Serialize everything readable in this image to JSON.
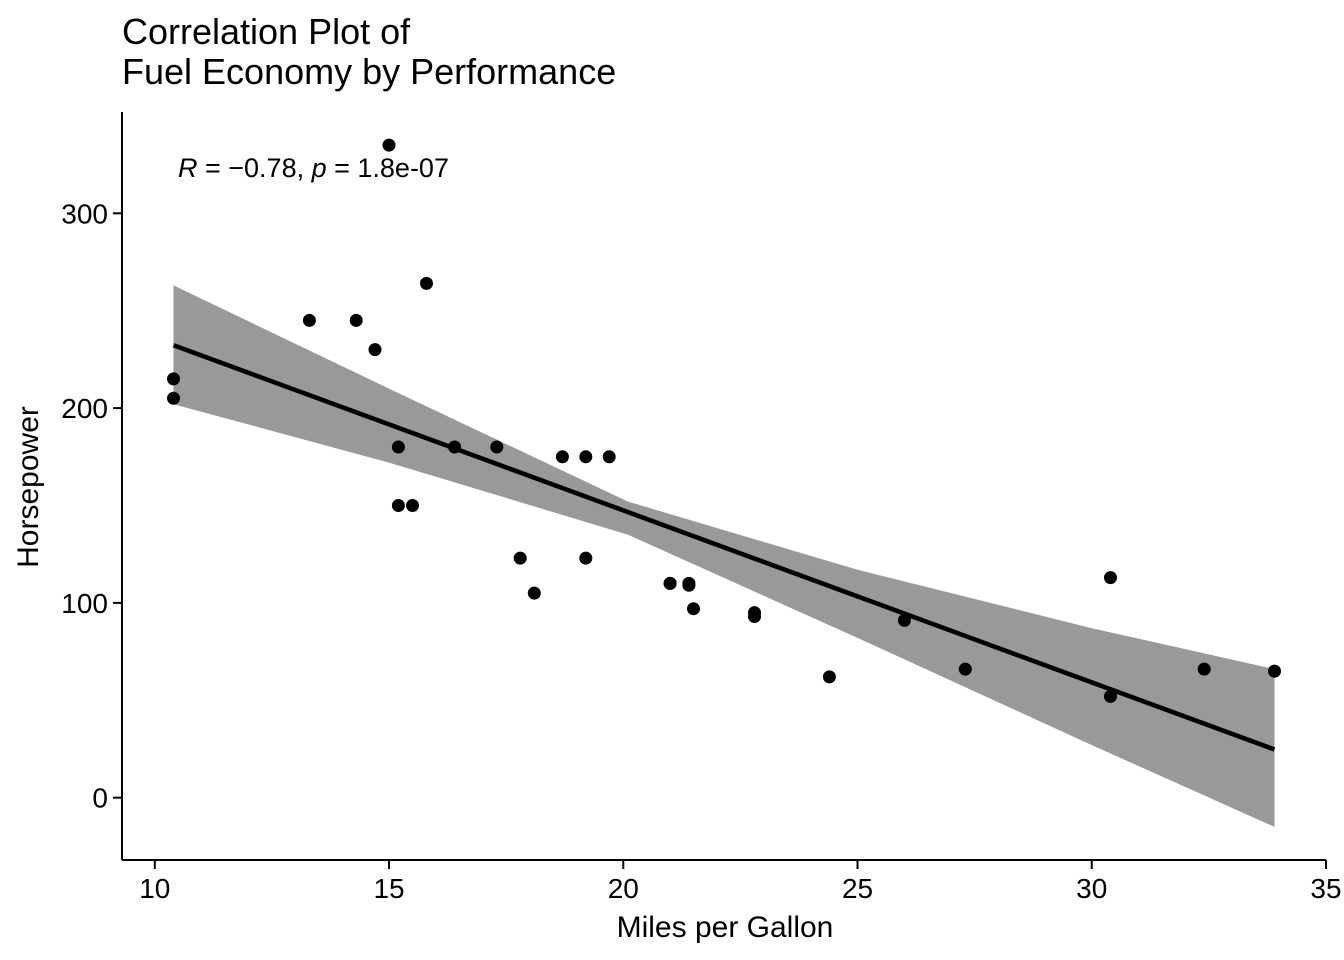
{
  "chart_data": {
    "type": "scatter",
    "title_lines": [
      "Correlation Plot of",
      "Fuel Economy by Performance"
    ],
    "xlabel": "Miles per Gallon",
    "ylabel": "Horsepower",
    "xlim": [
      9.3,
      35
    ],
    "ylim": [
      -32,
      352
    ],
    "xticks": [
      10,
      15,
      20,
      25,
      30,
      35
    ],
    "yticks": [
      0,
      100,
      200,
      300
    ],
    "grid": false,
    "annotation": {
      "r_symbol": "R",
      "r_text": " = −0.78, ",
      "p_symbol": "p",
      "p_text": " = 1.8e-07"
    },
    "points": [
      {
        "x": 21.0,
        "y": 110
      },
      {
        "x": 21.0,
        "y": 110
      },
      {
        "x": 22.8,
        "y": 93
      },
      {
        "x": 21.4,
        "y": 110
      },
      {
        "x": 18.7,
        "y": 175
      },
      {
        "x": 18.1,
        "y": 105
      },
      {
        "x": 14.3,
        "y": 245
      },
      {
        "x": 24.4,
        "y": 62
      },
      {
        "x": 22.8,
        "y": 95
      },
      {
        "x": 19.2,
        "y": 123
      },
      {
        "x": 17.8,
        "y": 123
      },
      {
        "x": 16.4,
        "y": 180
      },
      {
        "x": 17.3,
        "y": 180
      },
      {
        "x": 15.2,
        "y": 180
      },
      {
        "x": 10.4,
        "y": 205
      },
      {
        "x": 10.4,
        "y": 215
      },
      {
        "x": 14.7,
        "y": 230
      },
      {
        "x": 32.4,
        "y": 66
      },
      {
        "x": 30.4,
        "y": 52
      },
      {
        "x": 33.9,
        "y": 65
      },
      {
        "x": 21.5,
        "y": 97
      },
      {
        "x": 15.5,
        "y": 150
      },
      {
        "x": 15.2,
        "y": 150
      },
      {
        "x": 13.3,
        "y": 245
      },
      {
        "x": 19.2,
        "y": 175
      },
      {
        "x": 27.3,
        "y": 66
      },
      {
        "x": 26.0,
        "y": 91
      },
      {
        "x": 30.4,
        "y": 113
      },
      {
        "x": 15.8,
        "y": 264
      },
      {
        "x": 19.7,
        "y": 175
      },
      {
        "x": 15.0,
        "y": 335
      },
      {
        "x": 21.4,
        "y": 109
      }
    ],
    "regression": {
      "intercept": 324.08,
      "slope": -8.83
    },
    "confidence_band": [
      {
        "x": 10.4,
        "lower": 202,
        "upper": 263
      },
      {
        "x": 15.0,
        "lower": 172,
        "upper": 210
      },
      {
        "x": 20.1,
        "lower": 135,
        "upper": 152
      },
      {
        "x": 25.0,
        "lower": 82,
        "upper": 117
      },
      {
        "x": 30.0,
        "lower": 27,
        "upper": 87
      },
      {
        "x": 33.9,
        "lower": -15,
        "upper": 66
      }
    ],
    "colors": {
      "points": "#000000",
      "line": "#000000",
      "band": "#999999",
      "axis": "#000000"
    }
  }
}
